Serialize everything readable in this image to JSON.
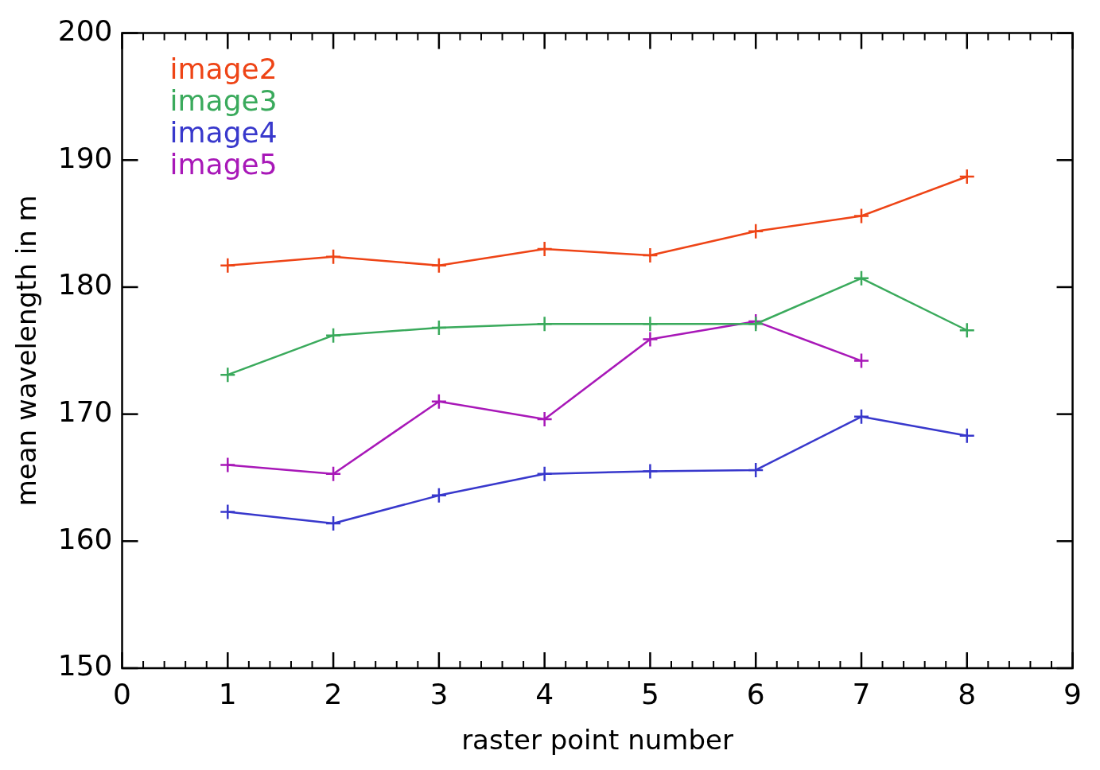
{
  "chart_data": {
    "type": "line",
    "xlabel": "raster point number",
    "ylabel": "mean wavelength in m",
    "x": [
      1,
      2,
      3,
      4,
      5,
      6,
      7,
      8
    ],
    "series": [
      {
        "name": "image2",
        "color": "#ee4416",
        "values": [
          181.7,
          182.4,
          181.7,
          183.0,
          182.5,
          184.4,
          185.6,
          188.7
        ]
      },
      {
        "name": "image3",
        "color": "#3aaa5c",
        "values": [
          173.1,
          176.2,
          176.8,
          177.1,
          177.1,
          177.1,
          180.7,
          176.6
        ]
      },
      {
        "name": "image4",
        "color": "#3838cc",
        "values": [
          162.3,
          161.4,
          163.6,
          165.3,
          165.5,
          165.6,
          169.8,
          168.3
        ]
      },
      {
        "name": "image5",
        "color": "#a818b8",
        "values": [
          166.0,
          165.3,
          171.0,
          169.6,
          175.9,
          177.3,
          174.2,
          null
        ]
      }
    ],
    "xlim": [
      0,
      9
    ],
    "xticks": [
      0,
      1,
      2,
      3,
      4,
      5,
      6,
      7,
      8,
      9
    ],
    "ylim": [
      150,
      200
    ],
    "yticks": [
      150,
      160,
      170,
      180,
      190,
      200
    ],
    "grid": false,
    "legend": "top left",
    "marker": "cross",
    "line_style": "solid"
  }
}
